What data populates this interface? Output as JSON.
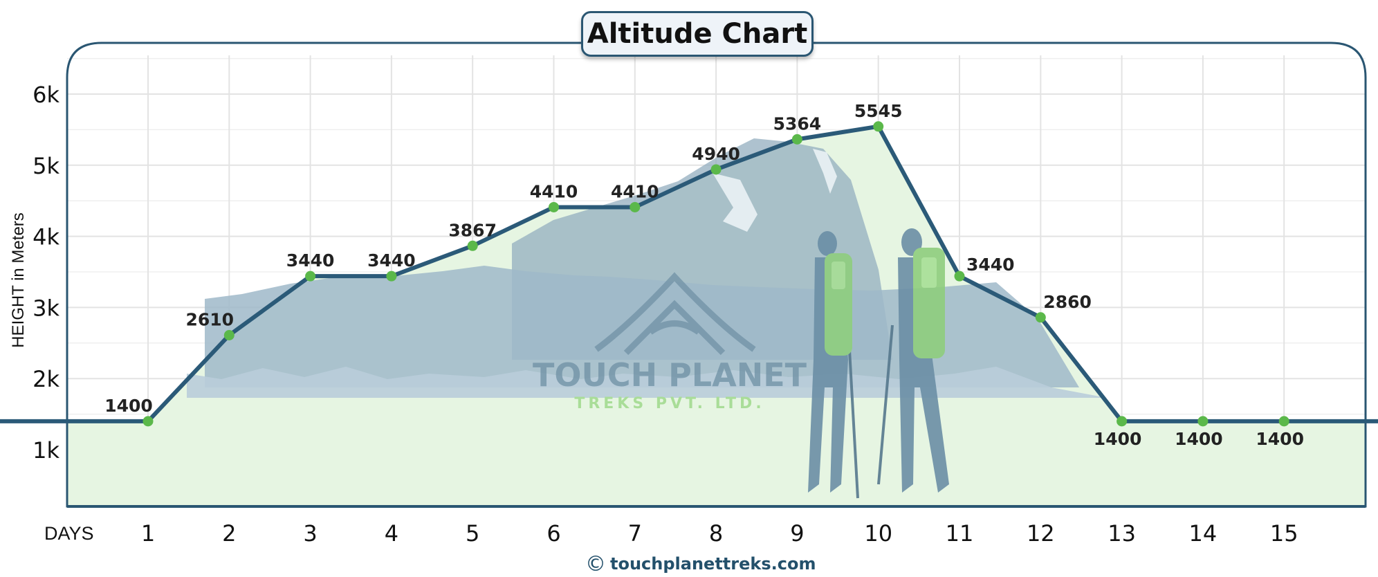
{
  "chart_data": {
    "type": "line",
    "title": "Altitude Chart",
    "xlabel": "DAYS",
    "ylabel": "HEIGHT in Meters",
    "categories": [
      "1",
      "2",
      "3",
      "4",
      "5",
      "6",
      "7",
      "8",
      "9",
      "10",
      "11",
      "12",
      "13",
      "14",
      "15"
    ],
    "x": [
      1,
      2,
      3,
      4,
      5,
      6,
      7,
      8,
      9,
      10,
      11,
      12,
      13,
      14,
      15
    ],
    "values": [
      1400,
      2610,
      3440,
      3440,
      3867,
      4410,
      4410,
      4940,
      5364,
      5545,
      3440,
      2860,
      1400,
      1400,
      1400
    ],
    "labels": [
      "1400",
      "2610",
      "3440",
      "3440",
      "3867",
      "4410",
      "4410",
      "4940",
      "5364",
      "5545",
      "3440",
      "2860",
      "1400",
      "1400",
      "1400"
    ],
    "ylim": [
      200,
      6600
    ],
    "yticks": [
      1000,
      2000,
      3000,
      4000,
      5000,
      6000
    ],
    "ytick_labels": [
      "1k",
      "2k",
      "3k",
      "4k",
      "5k",
      "6k"
    ],
    "grid": true,
    "line_color": "#2b5a78",
    "marker_color": "#5bb84a",
    "area_color": "#e6f5e2"
  },
  "watermark": {
    "brand": "TOUCH PLANET",
    "sub": "TREKS PVT. LTD."
  },
  "footer": {
    "copyright_icon": "©",
    "website": "touchplanettreks.com"
  }
}
